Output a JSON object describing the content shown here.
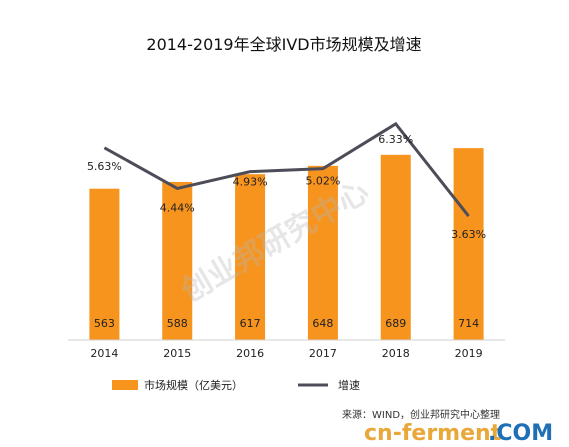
{
  "chart_data": {
    "type": "bar+line",
    "title": "2014-2019年全球IVD市场规模及增速",
    "categories": [
      "2014",
      "2015",
      "2016",
      "2017",
      "2018",
      "2019"
    ],
    "series": [
      {
        "name": "市场规模（亿美元）",
        "type": "bar",
        "color": "#F7941D",
        "values": [
          563,
          588,
          617,
          648,
          689,
          714
        ],
        "labels": [
          "563",
          "588",
          "617",
          "648",
          "689",
          "714"
        ]
      },
      {
        "name": "增速",
        "type": "line",
        "color": "#4D4D5A",
        "values": [
          5.63,
          4.44,
          4.93,
          5.02,
          6.33,
          3.63
        ],
        "labels": [
          "5.63%",
          "4.44%",
          "4.93%",
          "5.02%",
          "6.33%",
          "3.63%"
        ]
      }
    ],
    "bar_ylim": [
      0,
      800
    ],
    "line_ylim": [
      0,
      7
    ],
    "grid": false,
    "legend": "bottom-left",
    "source": "来源：WIND，创业邦研究中心整理"
  },
  "watermarks": {
    "center": "创业邦研究中心",
    "corner_cn": "cn-ferment",
    "corner_com": ".COM"
  }
}
